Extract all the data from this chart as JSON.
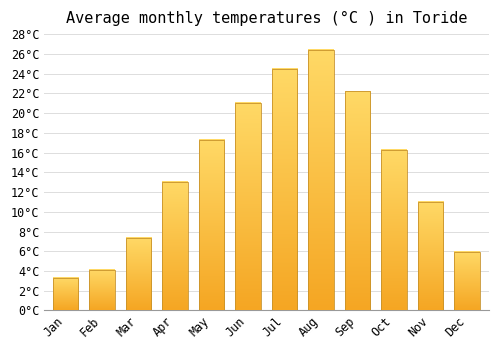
{
  "title": "Average monthly temperatures (°C ) in Toride",
  "months": [
    "Jan",
    "Feb",
    "Mar",
    "Apr",
    "May",
    "Jun",
    "Jul",
    "Aug",
    "Sep",
    "Oct",
    "Nov",
    "Dec"
  ],
  "temperatures": [
    3.3,
    4.1,
    7.3,
    13.0,
    17.3,
    21.0,
    24.5,
    26.4,
    22.2,
    16.3,
    11.0,
    5.9
  ],
  "bar_color_bottom": "#F5A623",
  "bar_color_top": "#FFD966",
  "bar_edge_color": "#C8922A",
  "ylim": [
    0,
    28
  ],
  "yticks": [
    0,
    2,
    4,
    6,
    8,
    10,
    12,
    14,
    16,
    18,
    20,
    22,
    24,
    26,
    28
  ],
  "background_color": "#FFFFFF",
  "grid_color": "#DDDDDD",
  "title_fontsize": 11,
  "tick_fontsize": 8.5,
  "font_family": "monospace",
  "bar_width": 0.7
}
